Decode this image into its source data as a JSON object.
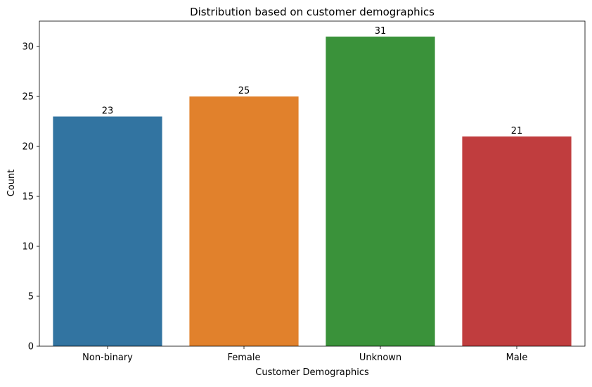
{
  "chart_data": {
    "type": "bar",
    "title": "Distribution based on customer demographics",
    "xlabel": "Customer Demographics",
    "ylabel": "Count",
    "categories": [
      "Non-binary",
      "Female",
      "Unknown",
      "Male"
    ],
    "values": [
      23,
      25,
      31,
      21
    ],
    "value_labels": [
      "23",
      "25",
      "31",
      "21"
    ],
    "colors": [
      "#3274a1",
      "#e1812c",
      "#3a923a",
      "#c03d3e"
    ],
    "ylim": [
      0,
      32.55
    ],
    "yticks": [
      0,
      5,
      10,
      15,
      20,
      25,
      30
    ],
    "ytick_labels": [
      "0",
      "5",
      "10",
      "15",
      "20",
      "25",
      "30"
    ],
    "grid": false,
    "legend": "none"
  }
}
